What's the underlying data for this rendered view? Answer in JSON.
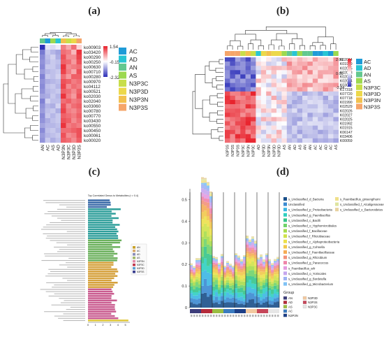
{
  "panel_labels": [
    "(a)",
    "(b)",
    "(c)",
    "(d)"
  ],
  "chart_data": [
    {
      "panel": "(a)",
      "type": "heatmap",
      "rows": [
        "ko00903",
        "ko03420",
        "ko00290",
        "ko00250",
        "ko00630",
        "ko00710",
        "ko00280",
        "ko00970",
        "ko04112",
        "ko00521",
        "ko02030",
        "ko02040",
        "ko03060",
        "ko00780",
        "ko00770",
        "ko03430",
        "ko00550",
        "ko00450",
        "ko00061",
        "ko00020"
      ],
      "columns": [
        "AN",
        "AC",
        "AS",
        "AD",
        "N3P3N",
        "N3P3C",
        "N3P3D",
        "N3P3S"
      ],
      "column_groups": [
        "AC",
        "AD",
        "AN",
        "AS",
        "N3P3C",
        "N3P3D",
        "N3P3N",
        "N3P3S"
      ],
      "group_colors": {
        "AC": "#1f9bd7",
        "AD": "#29c5d3",
        "AN": "#63c88f",
        "AS": "#9cd94f",
        "N3P3C": "#c8de4a",
        "N3P3D": "#ecd84a",
        "N3P3N": "#f2c14e",
        "N3P3S": "#f5a56a"
      },
      "scale_ticks": [
        1.54,
        -0.15,
        -2.32
      ],
      "values": [
        [
          -2.3,
          -0.3,
          -0.4,
          -0.2,
          0.9,
          0.6,
          1.0,
          0.3
        ],
        [
          -1.5,
          -0.6,
          -0.8,
          -1.0,
          1.0,
          0.9,
          0.5,
          1.4
        ],
        [
          -1.3,
          -0.7,
          -0.5,
          -0.9,
          1.2,
          0.8,
          0.8,
          1.3
        ],
        [
          -1.2,
          -0.8,
          -0.6,
          -0.7,
          1.1,
          1.0,
          0.7,
          1.2
        ],
        [
          -1.3,
          -0.6,
          -0.6,
          -0.8,
          1.4,
          0.8,
          0.9,
          1.0
        ],
        [
          -1.1,
          -0.8,
          -0.7,
          -0.6,
          1.3,
          0.9,
          0.6,
          1.2
        ],
        [
          -1.4,
          -0.6,
          -0.7,
          -0.5,
          1.0,
          0.7,
          1.1,
          1.1
        ],
        [
          -1.2,
          -0.9,
          -0.8,
          -0.7,
          1.2,
          1.1,
          0.9,
          1.0
        ],
        [
          -1.3,
          -0.7,
          -0.6,
          -0.8,
          1.3,
          0.8,
          1.0,
          0.9
        ],
        [
          -1.2,
          -0.8,
          -0.7,
          -0.6,
          1.1,
          1.0,
          0.8,
          1.1
        ],
        [
          -1.0,
          -0.9,
          -0.6,
          -0.8,
          1.4,
          0.9,
          0.7,
          1.2
        ],
        [
          -1.4,
          -0.5,
          -0.7,
          -0.7,
          1.0,
          1.1,
          0.9,
          1.0
        ],
        [
          -1.2,
          -0.8,
          -0.9,
          -0.5,
          1.2,
          0.8,
          1.0,
          1.1
        ],
        [
          -1.1,
          -0.7,
          -0.6,
          -0.9,
          1.3,
          0.9,
          0.8,
          1.0
        ],
        [
          -1.3,
          -0.6,
          -0.8,
          -0.6,
          1.1,
          1.0,
          0.9,
          1.1
        ],
        [
          -1.2,
          -0.9,
          -0.7,
          -0.6,
          1.2,
          1.1,
          0.8,
          1.0
        ],
        [
          -1.0,
          -0.8,
          -0.8,
          -0.7,
          1.4,
          0.9,
          1.0,
          0.9
        ],
        [
          -1.3,
          -0.7,
          -0.6,
          -0.8,
          1.0,
          1.0,
          1.1,
          1.2
        ],
        [
          -1.1,
          -0.8,
          -0.7,
          -0.6,
          1.2,
          0.8,
          0.9,
          1.2
        ],
        [
          -1.2,
          -0.6,
          -0.9,
          -0.7,
          1.1,
          1.0,
          0.8,
          1.1
        ]
      ]
    },
    {
      "panel": "(b)",
      "type": "heatmap",
      "rows": [
        "K02014",
        "K01999",
        "K02035",
        "K02033",
        "K02034",
        "K02004",
        "K03088",
        "K17318",
        "K07720",
        "K07718",
        "K01990",
        "K02529",
        "K02026",
        "K02027",
        "K02025",
        "K01992",
        "K01915",
        "K06147",
        "K03406",
        "K00059"
      ],
      "column_groups": [
        "AC",
        "AD",
        "AN",
        "AS",
        "N3P3C",
        "N3P3D",
        "N3P3N",
        "N3P3S"
      ],
      "group_colors": {
        "AC": "#1f9bd7",
        "AD": "#29c5d3",
        "AN": "#63c88f",
        "AS": "#9cd94f",
        "N3P3C": "#c8de4a",
        "N3P3D": "#ecd84a",
        "N3P3N": "#f2c14e",
        "N3P3S": "#f5a56a"
      },
      "column_group_sequence": [
        "N3P3S",
        "N3P3S",
        "N3P3S",
        "N3P3C",
        "N3P3N",
        "N3P3C",
        "AD",
        "N3P3D",
        "N3P3N",
        "N3P3D",
        "N3P3D",
        "AS",
        "AN",
        "AD",
        "AS",
        "AN",
        "AN",
        "AC",
        "AC",
        "AD",
        "AC",
        "AS"
      ],
      "scale_ticks": [
        2.01,
        0.0,
        -2.84
      ],
      "value_rule": "rows 0-7: columns 0-5 low, 6-11 mixed, 12-21 high-ish; rows 8-19: columns 0-5 high, 6-11 mixed, 12-21 low"
    },
    {
      "panel": "(c)",
      "type": "bar",
      "title": "Top Correlated Genus to Metabolites (r > 0.4)",
      "legend": [
        "AN",
        "AC",
        "AD",
        "AS",
        "N3P3N",
        "N3P3C",
        "N3P3D",
        "N3P3S"
      ],
      "legend_colors": [
        "#c9a227",
        "#d9a86c",
        "#8a8db8",
        "#a3b86c",
        "#e38aa8",
        "#c23b4e",
        "#5c9fd2",
        "#3a3f8f"
      ],
      "bar_groups": [
        {
          "color": "#3a6aa8",
          "count": 4,
          "value_range": [
            2.5,
            3.5
          ]
        },
        {
          "color": "#2e9e9a",
          "count": 14,
          "value_range": [
            3.0,
            4.4
          ]
        },
        {
          "color": "#6bb05c",
          "count": 10,
          "value_range": [
            3.0,
            4.6
          ]
        },
        {
          "color": "#d5a03a",
          "count": 12,
          "value_range": [
            3.0,
            4.3
          ]
        },
        {
          "color": "#c95a8e",
          "count": 14,
          "value_range": [
            3.0,
            4.5
          ]
        },
        {
          "color": "#e0c83a",
          "count": 1,
          "value_range": [
            5.4,
            5.4
          ]
        }
      ],
      "xticks": [
        "0",
        "1",
        "2",
        "3",
        "4",
        "5"
      ],
      "xlim": [
        0,
        5.6
      ]
    },
    {
      "panel": "(d)",
      "type": "area",
      "ylim": [
        0,
        0.55
      ],
      "yticks": [
        0,
        0.1,
        0.2,
        0.3,
        0.4,
        0.5
      ],
      "taxa": [
        {
          "name": "s_Unclassified_d_Bacteria",
          "color": "#1a4f8a"
        },
        {
          "name": "Unclassified",
          "color": "#3a8ad1"
        },
        {
          "name": "s_Unclassified_p_Proteobacteria",
          "color": "#3bb6e3"
        },
        {
          "name": "s_Unclassified_g_Paenibacillus",
          "color": "#2fcfc0"
        },
        {
          "name": "s_Unclassified_c_Bacilli",
          "color": "#35c48a"
        },
        {
          "name": "s_Unclassified_o_Hyphomicrobiales",
          "color": "#6fd36a"
        },
        {
          "name": "s_Unclassified_f_Bacillaceae",
          "color": "#a6dc4d"
        },
        {
          "name": "s_Unclassified_f_Rhizobiaceae",
          "color": "#cfe24a"
        },
        {
          "name": "s_Unclassified_c_Alphaproteobacteria",
          "color": "#ece04a"
        },
        {
          "name": "s_Unclassified_g_Cohnella",
          "color": "#f1c84b"
        },
        {
          "name": "s_Unclassified_f_Paenibacillaceae",
          "color": "#f5ac55"
        },
        {
          "name": "s_Unclassified_g_Rhizobium",
          "color": "#f2927a"
        },
        {
          "name": "s_Unclassified_g_Paracoccus",
          "color": "#ef84a9"
        },
        {
          "name": "s_Paenibacillus_arlr",
          "color": "#e39be0"
        },
        {
          "name": "s_Unclassified_o_Yoriscales",
          "color": "#c5a6ee"
        },
        {
          "name": "s_Unclassified_g_Bordetella",
          "color": "#9fb3f3"
        },
        {
          "name": "s_Unclassified_g_Microbacterium",
          "color": "#80c2f5"
        },
        {
          "name": "s_Paenibacillus_ginsengihumi",
          "color": "#f0e08a"
        },
        {
          "name": "s_Unclassified_f_Alcaligenaceae",
          "color": "#dfe5a0"
        },
        {
          "name": "s_Unclassified_o_Bacteroidetes",
          "color": "#e8d2a0"
        }
      ],
      "totals_by_group": [
        0.21,
        0.55,
        0.23,
        0.21,
        0.23,
        0.31,
        0.23,
        0.22
      ],
      "group_title": "Group",
      "groups": [
        {
          "name": "AN",
          "color": "#3d3d7a"
        },
        {
          "name": "AD",
          "color": "#b52b3a"
        },
        {
          "name": "AS",
          "color": "#9abd42"
        },
        {
          "name": "AC",
          "color": "#3b7bbf"
        },
        {
          "name": "N3P3N",
          "color": "#1d3f87"
        },
        {
          "name": "N3P3D",
          "color": "#f2c9a0"
        },
        {
          "name": "N3P3S",
          "color": "#c6475a"
        },
        {
          "name": "N3P3C",
          "color": "#e6e6e6"
        }
      ]
    }
  ]
}
